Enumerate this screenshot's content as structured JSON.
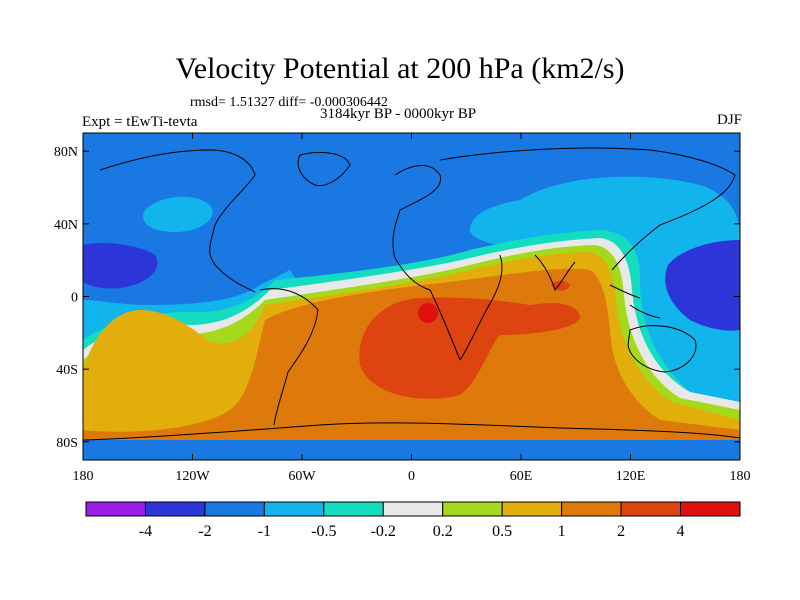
{
  "title": "Velocity Potential at 200 hPa (km2/s)",
  "stats": "rmsd= 1.51327 diff= -0.000306442",
  "period": "3184kyr BP - 0000kyr BP",
  "experiment": "Expt = tEwTi-tevta",
  "season": "DJF",
  "map": {
    "lon_range": [
      -180,
      180
    ],
    "lat_range": [
      -90,
      90
    ],
    "lon_ticks": [
      {
        "value": -180,
        "label": "180"
      },
      {
        "value": -120,
        "label": "120W"
      },
      {
        "value": -60,
        "label": "60W"
      },
      {
        "value": 0,
        "label": "0"
      },
      {
        "value": 60,
        "label": "60E"
      },
      {
        "value": 120,
        "label": "120E"
      },
      {
        "value": 180,
        "label": "180"
      }
    ],
    "lat_ticks": [
      {
        "value": 80,
        "label": "80N"
      },
      {
        "value": 40,
        "label": "40N"
      },
      {
        "value": 0,
        "label": "0"
      },
      {
        "value": -40,
        "label": "40S"
      },
      {
        "value": -80,
        "label": "80S"
      }
    ]
  },
  "colorbar": {
    "colors": [
      "#9b1ee6",
      "#2b35d8",
      "#1a78e3",
      "#12b4ec",
      "#14dcc0",
      "#e8e8e8",
      "#a6d81c",
      "#e2ae0c",
      "#de7a0c",
      "#de4410",
      "#e01010"
    ],
    "labels": [
      "-4",
      "-2",
      "-1",
      "-0.5",
      "-0.2",
      "0.2",
      "0.5",
      "1",
      "2",
      "4"
    ]
  }
}
